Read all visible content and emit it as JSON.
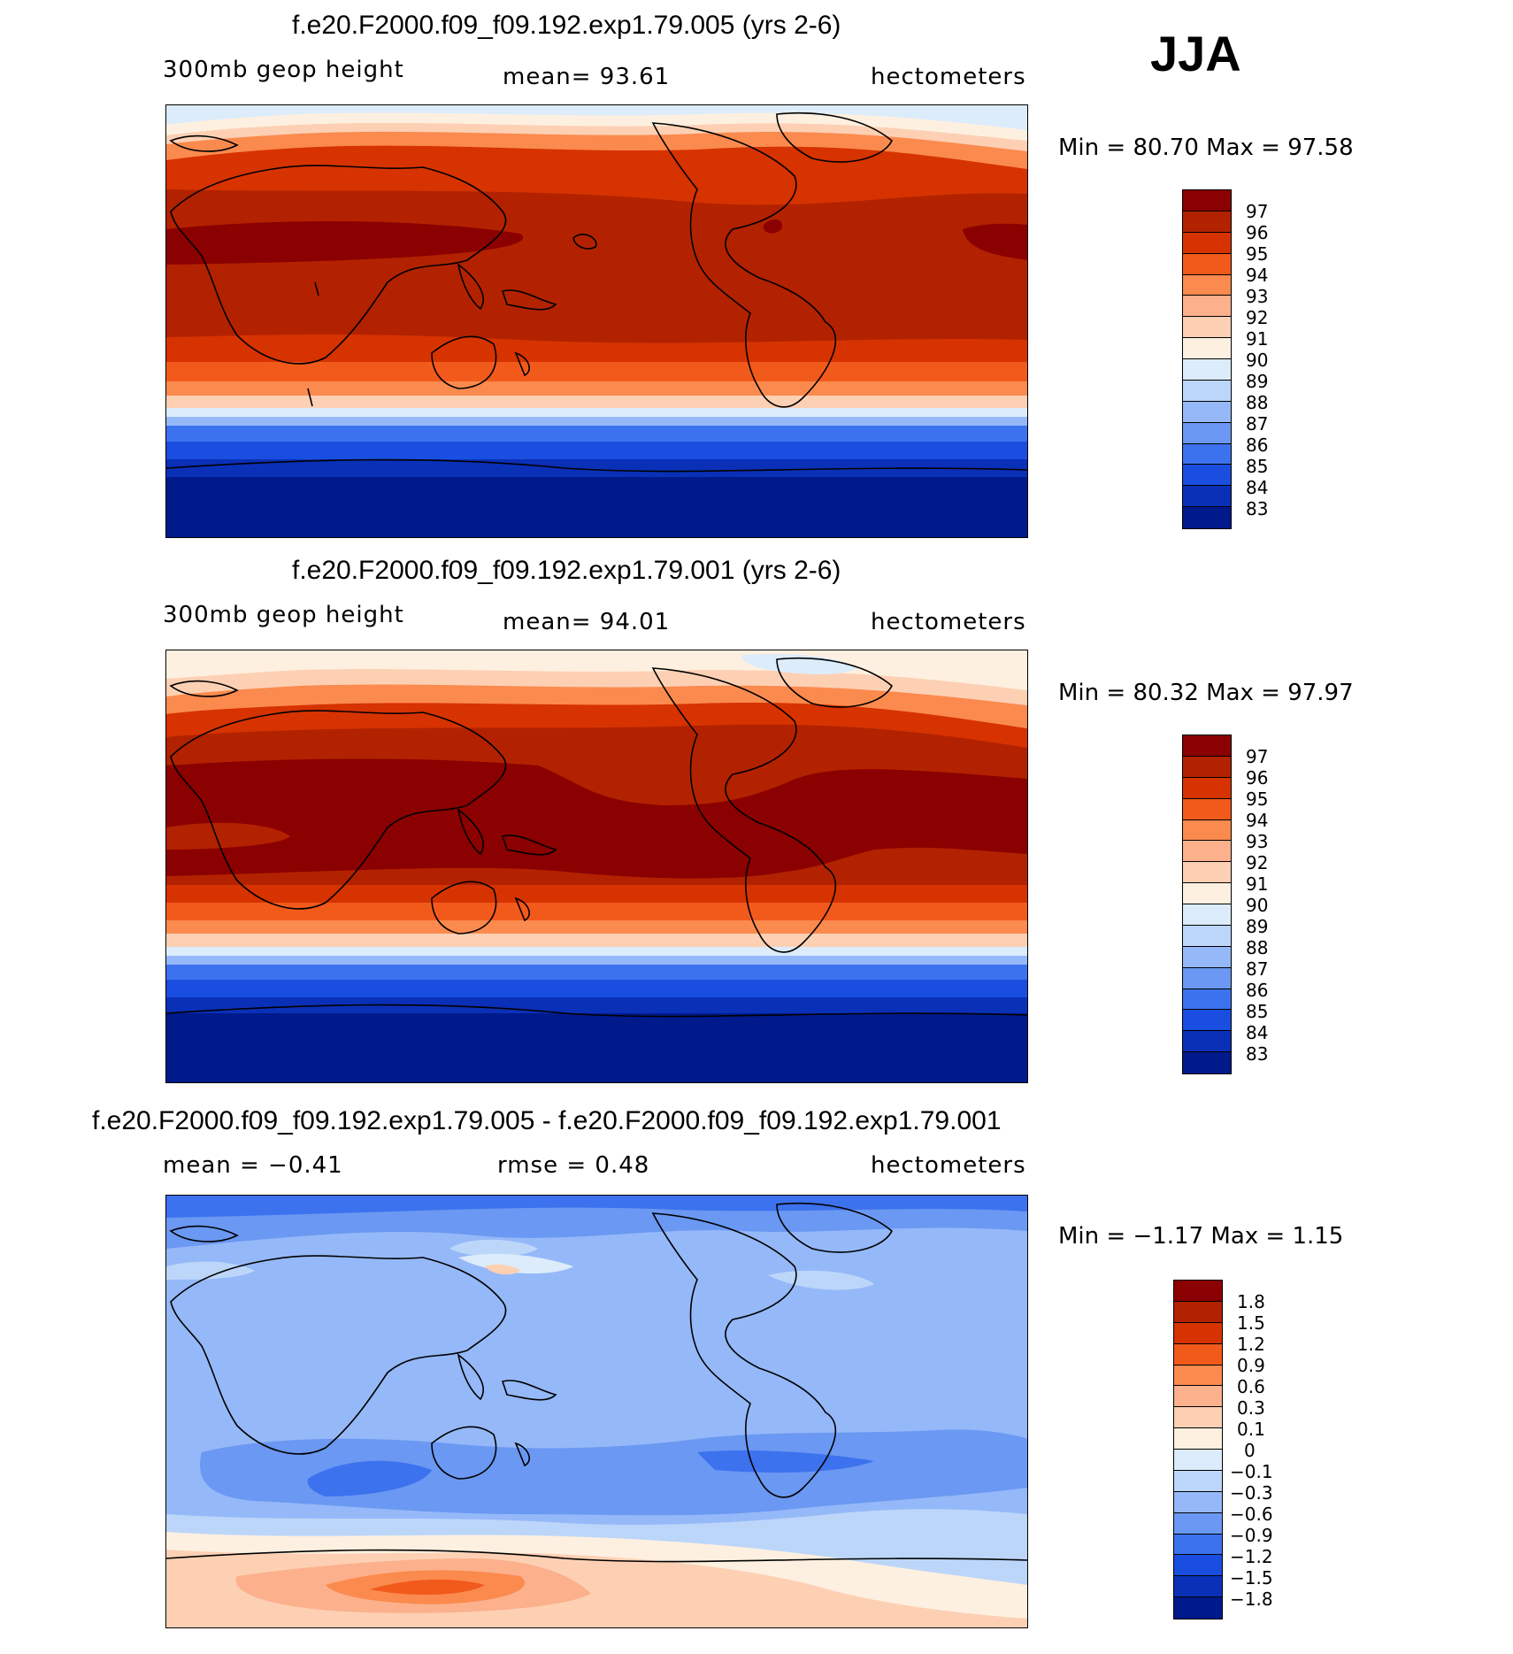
{
  "season_label": "JJA",
  "panels": [
    {
      "title": "f.e20.F2000.f09_f09.192.exp1.79.005 (yrs 2-6)",
      "left_text": "300mb geop height",
      "center_text": "mean=   93.61",
      "right_text": "hectometers",
      "minmax": "Min =   80.70  Max =   97.58",
      "colorbar_labels": [
        "97",
        "96",
        "95",
        "94",
        "93",
        "92",
        "91",
        "90",
        "89",
        "88",
        "87",
        "86",
        "85",
        "84",
        "83"
      ]
    },
    {
      "title": "f.e20.F2000.f09_f09.192.exp1.79.001 (yrs 2-6)",
      "left_text": "300mb geop height",
      "center_text": "mean=   94.01",
      "right_text": "hectometers",
      "minmax": "Min =   80.32  Max =   97.97",
      "colorbar_labels": [
        "97",
        "96",
        "95",
        "94",
        "93",
        "92",
        "91",
        "90",
        "89",
        "88",
        "87",
        "86",
        "85",
        "84",
        "83"
      ]
    },
    {
      "title": "f.e20.F2000.f09_f09.192.exp1.79.005 - f.e20.F2000.f09_f09.192.exp1.79.001",
      "left_text": "mean =   −0.41",
      "center_text": "rmse =    0.48",
      "right_text": "hectometers",
      "minmax": "Min =   −1.17  Max =    1.15",
      "colorbar_labels": [
        "1.8",
        "1.5",
        "1.2",
        "0.9",
        "0.6",
        "0.3",
        "0.1",
        "0",
        "−0.1",
        "−0.3",
        "−0.6",
        "−0.9",
        "−1.2",
        "−1.5",
        "−1.8"
      ]
    }
  ],
  "colors": {
    "abs_scale": [
      "#8b0000",
      "#b22200",
      "#d63300",
      "#f25a1c",
      "#fb8a4e",
      "#fcb08c",
      "#fdd0b4",
      "#fef0e0",
      "#dcecfb",
      "#bcd6fa",
      "#95b8f8",
      "#6a98f2",
      "#3d72ee",
      "#1a4ee0",
      "#0a30b8",
      "#001a8c"
    ],
    "diff_scale": [
      "#8b0000",
      "#b22200",
      "#d63300",
      "#f25a1c",
      "#fb8a4e",
      "#fcb08c",
      "#fdd0b4",
      "#fef0e0",
      "#dcecfb",
      "#bcd6fa",
      "#95b8f8",
      "#6a98f2",
      "#3d72ee",
      "#1a4ee0",
      "#0a30b8",
      "#001a8c"
    ]
  }
}
